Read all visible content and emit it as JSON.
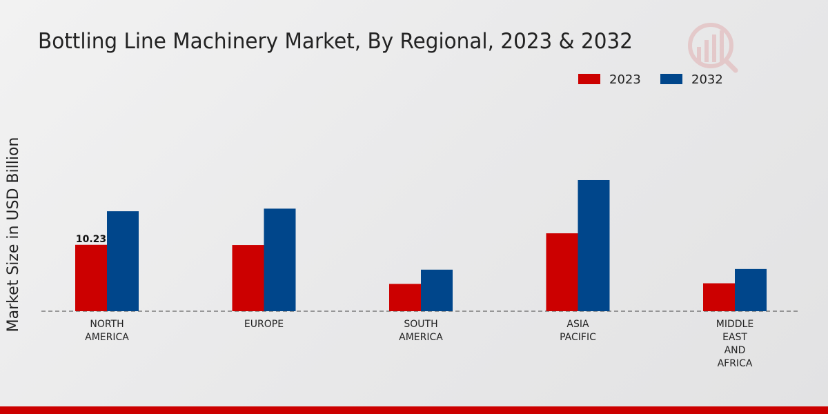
{
  "chart_data": {
    "type": "bar",
    "title": "Bottling Line Machinery Market, By Regional, 2023 & 2032",
    "ylabel": "Market Size in USD Billion",
    "xlabel": "",
    "categories": [
      [
        "NORTH",
        "AMERICA"
      ],
      [
        "EUROPE"
      ],
      [
        "SOUTH",
        "AMERICA"
      ],
      [
        "ASIA",
        "PACIFIC"
      ],
      [
        "MIDDLE",
        "EAST",
        "AND",
        "AFRICA"
      ]
    ],
    "series": [
      {
        "name": "2023",
        "color": "#cc0000",
        "values": [
          10.23,
          10.2,
          4.2,
          12.0,
          4.3
        ]
      },
      {
        "name": "2032",
        "color": "#00468b",
        "values": [
          15.4,
          15.8,
          6.4,
          20.2,
          6.5
        ]
      }
    ],
    "data_labels": [
      {
        "series": 0,
        "index": 0,
        "text": "10.23"
      }
    ],
    "ylim": [
      0,
      32
    ],
    "legend_position": "top-right",
    "grid": false
  },
  "colors": {
    "accent_red": "#cc0000",
    "accent_blue": "#00468b",
    "footer_bar": "#cc0000"
  }
}
